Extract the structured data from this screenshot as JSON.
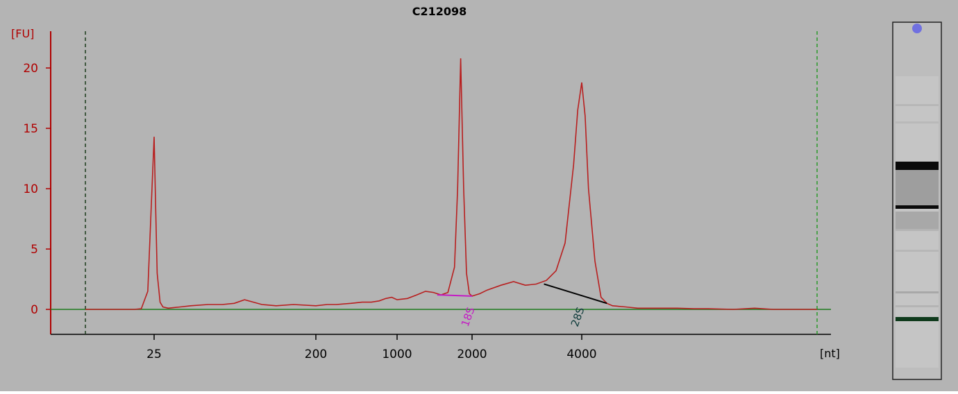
{
  "chart_data": {
    "type": "line",
    "title": "C212098",
    "ylabel": "[FU]",
    "xlabel": "[nt]",
    "ylim": [
      -2,
      24
    ],
    "yticks": [
      0,
      5,
      10,
      15,
      20
    ],
    "xticks": [
      "25",
      "200",
      "1000",
      "2000",
      "4000"
    ],
    "x_scale": "log",
    "colors": {
      "trace": "#b81e1e",
      "axis": "#b00000",
      "baseline": "#1c7a1c",
      "marker_18s": "#c41bc4",
      "marker_28s": "#0e3b3b",
      "plot_bg": "#b4b4b4"
    },
    "series": [
      {
        "x": [
          16,
          19,
          22,
          23,
          24,
          24.5,
          25,
          25.5,
          26,
          27,
          28,
          30,
          35,
          40,
          50,
          60,
          70,
          80,
          100,
          120,
          150,
          200,
          250,
          300,
          400,
          500,
          600,
          700,
          800,
          900,
          1000,
          1100,
          1200,
          1300,
          1400,
          1500,
          1600,
          1700,
          1750,
          1800,
          1850,
          1900,
          1950,
          2000,
          2100,
          2200,
          2400,
          2600,
          2800,
          3000,
          3200,
          3400,
          3600,
          3800,
          3900,
          4000,
          4100,
          4200,
          4400,
          4600,
          4800,
          5000,
          5500,
          6000,
          7000,
          8000,
          9000,
          10000,
          12000,
          14000,
          16000,
          18000,
          20000,
          22000
        ],
        "values": [
          0.0,
          0.0,
          0.0,
          0.05,
          1.5,
          8.0,
          14.3,
          8.5,
          3.0,
          0.6,
          0.2,
          0.1,
          0.2,
          0.3,
          0.4,
          0.4,
          0.5,
          0.8,
          0.4,
          0.3,
          0.4,
          0.3,
          0.4,
          0.4,
          0.5,
          0.6,
          0.6,
          0.7,
          0.9,
          1.0,
          0.8,
          0.9,
          1.2,
          1.5,
          1.4,
          1.2,
          1.4,
          3.5,
          10.0,
          20.8,
          10.0,
          3.0,
          1.3,
          1.1,
          1.3,
          1.6,
          2.0,
          2.3,
          2.0,
          2.1,
          2.4,
          3.2,
          5.5,
          12.0,
          16.5,
          18.8,
          16.0,
          10.0,
          4.0,
          1.0,
          0.5,
          0.3,
          0.2,
          0.1,
          0.1,
          0.1,
          0.05,
          0.05,
          0.0,
          0.1,
          0.0,
          0.0,
          0.0,
          0.0
        ]
      }
    ],
    "annotations": [
      {
        "label": "18S",
        "x": 2000
      },
      {
        "label": "28S",
        "x": 4000
      }
    ]
  },
  "gel": {
    "band_colors": {
      "lane": "#c9c9c9",
      "band": "#0a0a0a",
      "marker": "#0f3a1c",
      "dot": "#7070e0"
    }
  }
}
